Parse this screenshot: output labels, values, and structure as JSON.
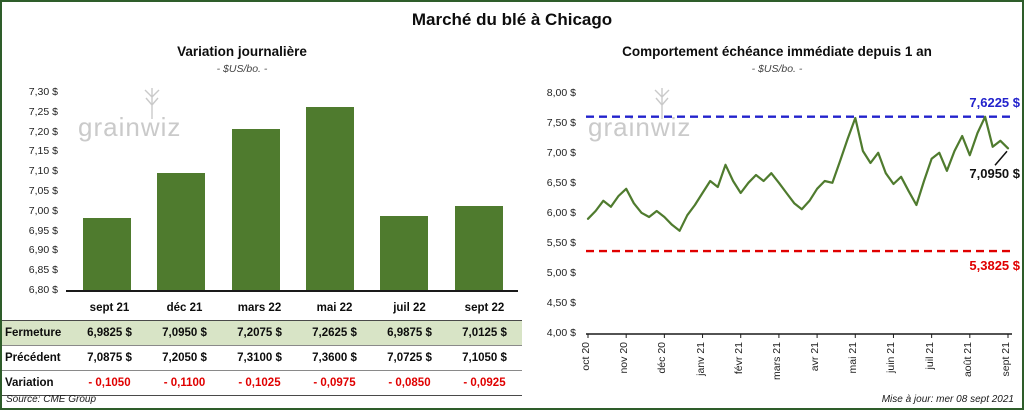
{
  "title": "Marché du blé à Chicago",
  "source": "Source: CME Group",
  "updated": "Mise à jour: mer 08 sept 2021",
  "watermark": "grainwiz",
  "colors": {
    "bar_green": "#4f7b2e",
    "line_green": "#4f7b2e",
    "max_blue": "#2222cc",
    "min_red": "#e00000",
    "variation_red": "#e00000",
    "table_green_bg": "#d8e4c6",
    "border_green": "#2e5d2a"
  },
  "chart_data": [
    {
      "type": "bar",
      "title": "Variation  journalière",
      "subtitle": "- $US/bo. -",
      "categories": [
        "sept 21",
        "déc 21",
        "mars 22",
        "mai 22",
        "juil 22",
        "sept 22"
      ],
      "values": [
        6.9825,
        7.095,
        7.2075,
        7.2625,
        6.9875,
        7.0125
      ],
      "ylim": [
        6.8,
        7.3
      ],
      "ytick_step": 0.05,
      "ytick_labels": [
        "7,30 $",
        "7,25 $",
        "7,20 $",
        "7,15 $",
        "7,10 $",
        "7,05 $",
        "7,00 $",
        "6,95 $",
        "6,90 $",
        "6,85 $",
        "6,80 $"
      ],
      "grid": false,
      "table": {
        "rows": [
          {
            "label": "Fermeture",
            "values": [
              "6,9825  $",
              "7,0950  $",
              "7,2075  $",
              "7,2625  $",
              "6,9875  $",
              "7,0125  $"
            ]
          },
          {
            "label": "Précédent",
            "values": [
              "7,0875  $",
              "7,2050  $",
              "7,3100  $",
              "7,3600  $",
              "7,0725  $",
              "7,1050  $"
            ]
          },
          {
            "label": "Variation",
            "values": [
              "- 0,1050",
              "- 0,1100",
              "- 0,1025",
              "- 0,0975",
              "- 0,0850",
              "- 0,0925"
            ]
          }
        ]
      }
    },
    {
      "type": "line",
      "title": "Comportement  échéance  immédiate  depuis  1 an",
      "subtitle": "- $US/bo. -",
      "x_labels": [
        "oct 20",
        "nov 20",
        "déc 20",
        "janv 21",
        "févr 21",
        "mars 21",
        "avr 21",
        "mai 21",
        "juin 21",
        "juil 21",
        "août 21",
        "sept 21"
      ],
      "ylim": [
        4.0,
        8.0
      ],
      "ytick_labels": [
        "8,00 $",
        "7,50 $",
        "7,00 $",
        "6,50 $",
        "6,00 $",
        "5,50 $",
        "5,00 $",
        "4,50 $",
        "4,00 $"
      ],
      "grid": false,
      "max_line": {
        "value": 7.6225,
        "label": "7,6225  $"
      },
      "min_line": {
        "value": 5.3825,
        "label": "5,3825  $"
      },
      "last_value": 7.095,
      "last_label": "7,0950  $",
      "values": [
        5.92,
        6.05,
        6.22,
        6.12,
        6.3,
        6.42,
        6.18,
        6.02,
        5.95,
        6.05,
        5.95,
        5.82,
        5.72,
        5.98,
        6.15,
        6.35,
        6.55,
        6.45,
        6.82,
        6.55,
        6.35,
        6.52,
        6.65,
        6.55,
        6.68,
        6.52,
        6.35,
        6.18,
        6.08,
        6.22,
        6.42,
        6.55,
        6.52,
        6.88,
        7.25,
        7.6,
        7.05,
        6.85,
        7.02,
        6.68,
        6.5,
        6.62,
        6.38,
        6.15,
        6.55,
        6.92,
        7.02,
        6.72,
        7.05,
        7.3,
        6.98,
        7.35,
        7.62,
        7.12,
        7.22,
        7.095
      ]
    }
  ]
}
